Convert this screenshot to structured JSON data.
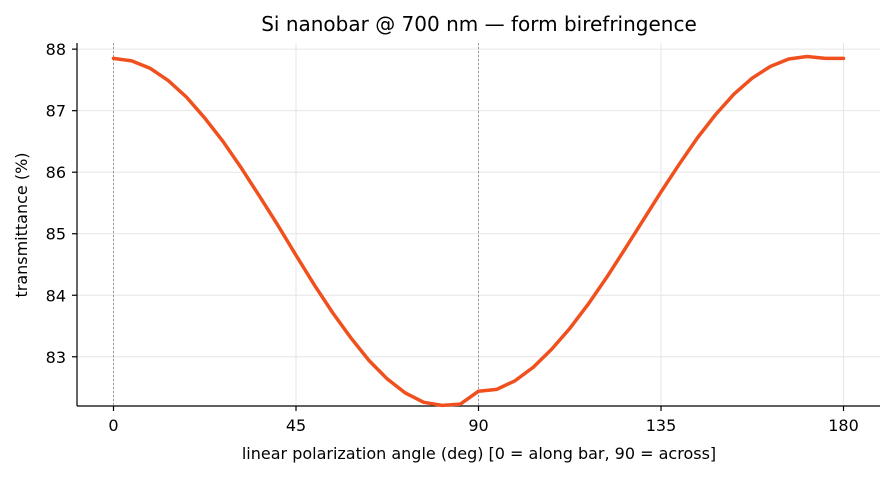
{
  "chart_data": {
    "type": "line",
    "title": "Si nanobar @ 700 nm — form birefringence",
    "xlabel": "linear polarization angle (deg)   [0 = along bar, 90 = across]",
    "ylabel": "transmittance (%)",
    "xlim": [
      -9,
      189
    ],
    "ylim": [
      82.2,
      88.1
    ],
    "x_ticks": [
      0,
      45,
      90,
      135,
      180
    ],
    "y_ticks": [
      83,
      84,
      85,
      86,
      87,
      88
    ],
    "grid": true,
    "reference_lines_x": [
      0,
      90
    ],
    "line_color": "#f0501e",
    "series": [
      {
        "x": [
          0,
          4.5,
          9,
          13.5,
          18,
          22.5,
          27,
          31.5,
          36,
          40.5,
          45,
          49.5,
          54,
          58.5,
          63,
          67.5,
          72,
          76.5,
          81,
          85.5,
          90,
          94.5,
          99,
          103.5,
          108,
          112.5,
          117,
          121.5,
          126,
          130.5,
          135,
          139.5,
          144,
          148.5,
          153,
          157.5,
          162,
          166.5,
          171,
          175.5,
          180
        ],
        "values": [
          87.85,
          87.81,
          87.69,
          87.49,
          87.22,
          86.88,
          86.5,
          86.07,
          85.61,
          85.14,
          84.65,
          84.17,
          83.72,
          83.31,
          82.94,
          82.64,
          82.41,
          82.26,
          82.21,
          82.23,
          82.44,
          82.47,
          82.61,
          82.83,
          83.12,
          83.46,
          83.85,
          84.28,
          84.74,
          85.21,
          85.68,
          86.13,
          86.56,
          86.94,
          87.27,
          87.53,
          87.72,
          87.84,
          87.88,
          87.85,
          87.85
        ]
      }
    ]
  }
}
